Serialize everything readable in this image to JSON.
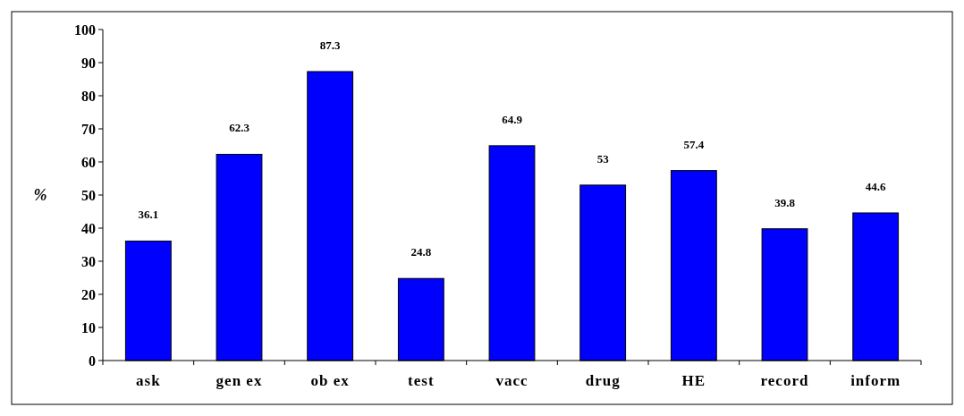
{
  "chart_data": {
    "type": "bar",
    "categories": [
      "ask",
      "gen ex",
      "ob ex",
      "test",
      "vacc",
      "drug",
      "HE",
      "record",
      "inform"
    ],
    "values": [
      36.1,
      62.3,
      87.3,
      24.8,
      64.9,
      53,
      57.4,
      39.8,
      44.6
    ],
    "value_labels": [
      "36.1",
      "62.3",
      "87.3",
      "24.8",
      "64.9",
      "53",
      "57.4",
      "39.8",
      "44.6"
    ],
    "color": "#0000ff",
    "ylabel": "%",
    "ylim": [
      0,
      100
    ],
    "yticks": [
      0,
      10,
      20,
      30,
      40,
      50,
      60,
      70,
      80,
      90,
      100
    ],
    "grid": false
  }
}
